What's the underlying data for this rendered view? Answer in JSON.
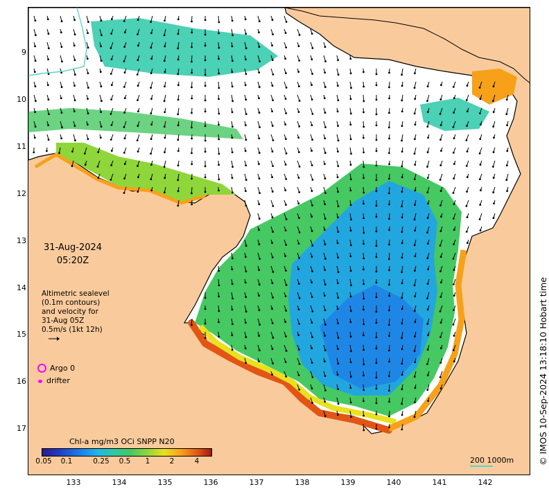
{
  "map": {
    "date": "31-Aug-2024",
    "time": "05:20Z",
    "sealevel_note": [
      "Altimetric sealevel",
      "(0.1m contours)",
      "and velocity for",
      "31-Aug 05Z",
      "0.5m/s (1kt 12h)"
    ],
    "argo_label": "Argo 0",
    "drifter_label": "drifter",
    "colorbar_title": "Chl-a mg/m3 OCi SNPP N20",
    "colorbar_ticks": [
      "0.05",
      "0.1",
      "0.25",
      "0.5",
      "1",
      "2",
      "4"
    ],
    "scale_label": "200  1000m",
    "credit": "© IMOS 10-Sep-2024 13:18:10 Hobart time",
    "y_ticks": [
      "9",
      "10",
      "11",
      "12",
      "13",
      "14",
      "15",
      "16",
      "17"
    ],
    "x_ticks": [
      "133",
      "134",
      "135",
      "136",
      "137",
      "138",
      "139",
      "140",
      "141",
      "142"
    ],
    "colors": {
      "land": "#f9cb9c",
      "water_nodata": "#ffffff",
      "argo": "#ff00ff",
      "coast": "#000000",
      "contour": "#5ad3c6"
    }
  }
}
